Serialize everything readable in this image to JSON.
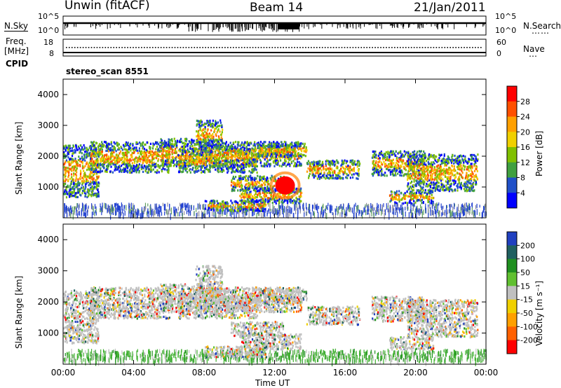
{
  "header": {
    "station": "Unwin (fitACF)",
    "beam": "Beam 14",
    "date": "21/Jan/2011"
  },
  "side_labels": {
    "nsky": "N.Sky",
    "freq_1": "Freq.",
    "freq_2": "[MHz]",
    "cpid": "CPID",
    "nsearch": "N.Search",
    "nave": "Nave"
  },
  "cpid_text": "stereo_scan 8551",
  "colors": {
    "power": [
      "#0000ff",
      "#2050c8",
      "#40a040",
      "#80c000",
      "#f0d000",
      "#ffa000",
      "#ff5000",
      "#ff0000"
    ],
    "velocity": [
      "#ff0000",
      "#ff6000",
      "#ffa000",
      "#f0d000",
      "#c0c0c0",
      "#60c030",
      "#209020",
      "#206060",
      "#2040c0"
    ]
  },
  "chart_data": [
    {
      "type": "line",
      "name": "noise-panel",
      "y_left_ticks": [
        "10^5",
        "10^0"
      ],
      "y_right_ticks": [
        "10^5",
        "10^0"
      ],
      "ylim": [
        1,
        100000
      ],
      "scale": "log"
    },
    {
      "type": "line",
      "name": "freq-panel",
      "y_left_ticks": [
        "18",
        "8"
      ],
      "y_right_ticks": [
        "60",
        "0"
      ],
      "ylim_left": [
        8,
        18
      ],
      "ylim_right": [
        0,
        60
      ]
    },
    {
      "type": "heatmap",
      "name": "power",
      "ylabel": "Slant Range [km]",
      "yticks": [
        "1000",
        "2000",
        "3000",
        "4000"
      ],
      "ylim": [
        0,
        4500
      ],
      "xlim": [
        0,
        24
      ],
      "colorbar_label": "Power [dB]",
      "colorbar_ticks": [
        "4",
        "8",
        "12",
        "16",
        "20",
        "24",
        "28"
      ],
      "clim": [
        0,
        30
      ]
    },
    {
      "type": "heatmap",
      "name": "velocity",
      "ylabel": "Slant Range [km]",
      "yticks": [
        "1000",
        "2000",
        "3000",
        "4000"
      ],
      "ylim": [
        0,
        4500
      ],
      "xlim": [
        0,
        24
      ],
      "colorbar_label": "Velocity [m s⁻¹]",
      "colorbar_ticks": [
        "-200",
        "-100",
        "-50",
        "-15",
        "15",
        "50",
        "100",
        "200"
      ],
      "clim": [
        -250,
        250
      ]
    }
  ],
  "x_axis": {
    "label": "Time UT",
    "ticks": [
      "00:00",
      "04:00",
      "08:00",
      "12:00",
      "16:00",
      "20:00",
      "00:00"
    ]
  }
}
